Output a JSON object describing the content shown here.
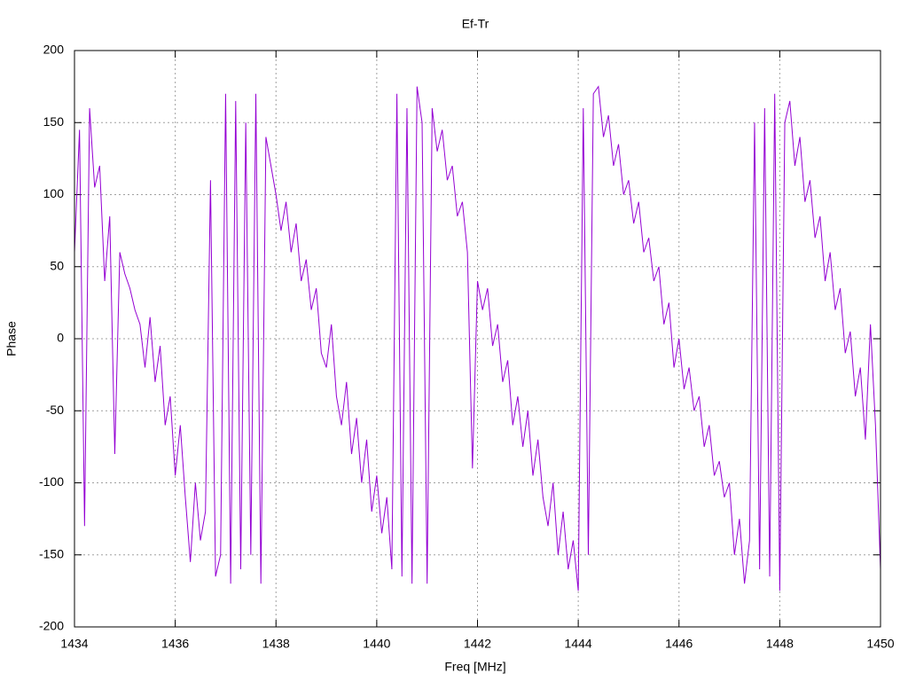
{
  "chart_data": {
    "type": "line",
    "title": "Ef-Tr",
    "x_label": "Freq [MHz]",
    "y_label": "Phase",
    "x": [
      1434.0,
      1434.1,
      1434.2,
      1434.3,
      1434.4,
      1434.5,
      1434.6,
      1434.7,
      1434.8,
      1434.9,
      1435.0,
      1435.1,
      1435.2,
      1435.3,
      1435.4,
      1435.5,
      1435.6,
      1435.7,
      1435.8,
      1435.9,
      1436.0,
      1436.1,
      1436.2,
      1436.3,
      1436.4,
      1436.5,
      1436.6,
      1436.7,
      1436.8,
      1436.9,
      1437.0,
      1437.1,
      1437.2,
      1437.3,
      1437.4,
      1437.5,
      1437.6,
      1437.7,
      1437.8,
      1437.9,
      1438.0,
      1438.1,
      1438.2,
      1438.3,
      1438.4,
      1438.5,
      1438.6,
      1438.7,
      1438.8,
      1438.9,
      1439.0,
      1439.1,
      1439.2,
      1439.3,
      1439.4,
      1439.5,
      1439.6,
      1439.7,
      1439.8,
      1439.9,
      1440.0,
      1440.1,
      1440.2,
      1440.3,
      1440.4,
      1440.5,
      1440.6,
      1440.7,
      1440.8,
      1440.9,
      1441.0,
      1441.1,
      1441.2,
      1441.3,
      1441.4,
      1441.5,
      1441.6,
      1441.7,
      1441.8,
      1441.9,
      1442.0,
      1442.1,
      1442.2,
      1442.3,
      1442.4,
      1442.5,
      1442.6,
      1442.7,
      1442.8,
      1442.9,
      1443.0,
      1443.1,
      1443.2,
      1443.3,
      1443.4,
      1443.5,
      1443.6,
      1443.7,
      1443.8,
      1443.9,
      1444.0,
      1444.1,
      1444.2,
      1444.3,
      1444.4,
      1444.5,
      1444.6,
      1444.7,
      1444.8,
      1444.9,
      1445.0,
      1445.1,
      1445.2,
      1445.3,
      1445.4,
      1445.5,
      1445.6,
      1445.7,
      1445.8,
      1445.9,
      1446.0,
      1446.1,
      1446.2,
      1446.3,
      1446.4,
      1446.5,
      1446.6,
      1446.7,
      1446.8,
      1446.9,
      1447.0,
      1447.1,
      1447.2,
      1447.3,
      1447.4,
      1447.5,
      1447.6,
      1447.7,
      1447.8,
      1447.9,
      1448.0,
      1448.1,
      1448.2,
      1448.3,
      1448.4,
      1448.5,
      1448.6,
      1448.7,
      1448.8,
      1448.9,
      1449.0,
      1449.1,
      1449.2,
      1449.3,
      1449.4,
      1449.5,
      1449.6,
      1449.7,
      1449.8,
      1449.9,
      1450.0
    ],
    "series": [
      {
        "name": "Ef-Tr",
        "color": "#9400d3",
        "values": [
          60,
          145,
          -130,
          160,
          105,
          120,
          40,
          85,
          -80,
          60,
          45,
          35,
          20,
          10,
          -20,
          15,
          -30,
          -5,
          -60,
          -40,
          -95,
          -60,
          -110,
          -155,
          -100,
          -140,
          -120,
          110,
          -165,
          -150,
          170,
          -170,
          165,
          -160,
          150,
          -150,
          170,
          -170,
          140,
          120,
          100,
          75,
          95,
          60,
          80,
          40,
          55,
          20,
          35,
          -10,
          -20,
          10,
          -40,
          -60,
          -30,
          -80,
          -55,
          -100,
          -70,
          -120,
          -95,
          -135,
          -110,
          -160,
          170,
          -165,
          160,
          -170,
          175,
          150,
          -170,
          160,
          130,
          145,
          110,
          120,
          85,
          95,
          60,
          -90,
          40,
          20,
          35,
          -5,
          10,
          -30,
          -15,
          -60,
          -40,
          -75,
          -50,
          -95,
          -70,
          -110,
          -130,
          -100,
          -150,
          -120,
          -160,
          -140,
          -175,
          160,
          -150,
          170,
          175,
          140,
          155,
          120,
          135,
          100,
          110,
          80,
          95,
          60,
          70,
          40,
          50,
          10,
          25,
          -20,
          0,
          -35,
          -20,
          -50,
          -40,
          -75,
          -60,
          -95,
          -85,
          -110,
          -100,
          -150,
          -125,
          -170,
          -140,
          150,
          -160,
          160,
          -165,
          170,
          -175,
          150,
          165,
          120,
          140,
          95,
          110,
          70,
          85,
          40,
          60,
          20,
          35,
          -10,
          5,
          -40,
          -20,
          -70,
          10,
          -60,
          -160
        ]
      }
    ],
    "xlim": [
      1434,
      1450
    ],
    "xticks": [
      1434,
      1436,
      1438,
      1440,
      1442,
      1444,
      1446,
      1448,
      1450
    ],
    "ylim": [
      -200,
      200
    ],
    "yticks": [
      -200,
      -150,
      -100,
      -50,
      0,
      50,
      100,
      150,
      200
    ],
    "grid": true
  }
}
